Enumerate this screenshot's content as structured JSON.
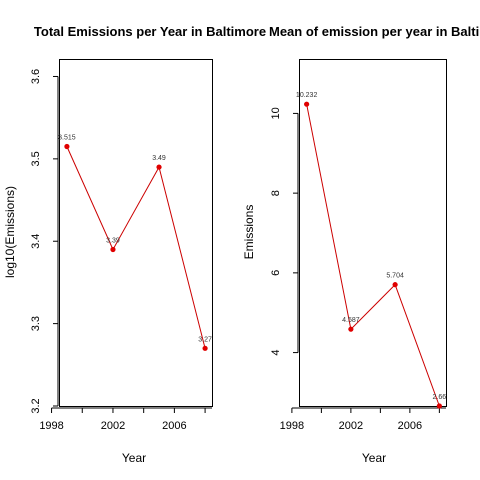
{
  "chart_data": [
    {
      "type": "line",
      "title": "Total Emissions per Year in Baltimore",
      "xlabel": "Year",
      "ylabel": "log10(Emissions)",
      "x": [
        1999,
        2002,
        2005,
        2008
      ],
      "values": [
        3.515,
        3.39,
        3.49,
        3.27
      ],
      "data_labels": [
        "3.515",
        "3.39",
        "3.49",
        "3.27"
      ],
      "xlim": [
        1998.55,
        2008.45
      ],
      "ylim": [
        3.2,
        3.62
      ],
      "xticks": [
        1998,
        2002,
        2006
      ],
      "xtick_labels": [
        "1998",
        "2002",
        "2006"
      ],
      "yticks": [
        3.2,
        3.3,
        3.4,
        3.5,
        3.6
      ],
      "ytick_labels": [
        "3.2",
        "3.3",
        "3.4",
        "3.5",
        "3.6"
      ],
      "grid": false,
      "legend": "none",
      "line_color": "#cc0000",
      "point_color": "#e00000"
    },
    {
      "type": "line",
      "title": "Mean of emission per year in Baltimore",
      "xlabel": "Year",
      "ylabel": "Emissions",
      "x": [
        1999,
        2002,
        2005,
        2008
      ],
      "values": [
        10.232,
        4.587,
        5.704,
        2.66
      ],
      "data_labels": [
        "10.232",
        "4.587",
        "5.704",
        "2.66"
      ],
      "xlim": [
        1998.55,
        2008.45
      ],
      "ylim": [
        2.66,
        11.34
      ],
      "xticks": [
        1998,
        2002,
        2006
      ],
      "xtick_labels": [
        "1998",
        "2002",
        "2006"
      ],
      "yticks": [
        4,
        6,
        8,
        10
      ],
      "ytick_labels": [
        "4",
        "6",
        "8",
        "10"
      ],
      "grid": false,
      "legend": "none",
      "line_color": "#cc0000",
      "point_color": "#e00000"
    }
  ]
}
